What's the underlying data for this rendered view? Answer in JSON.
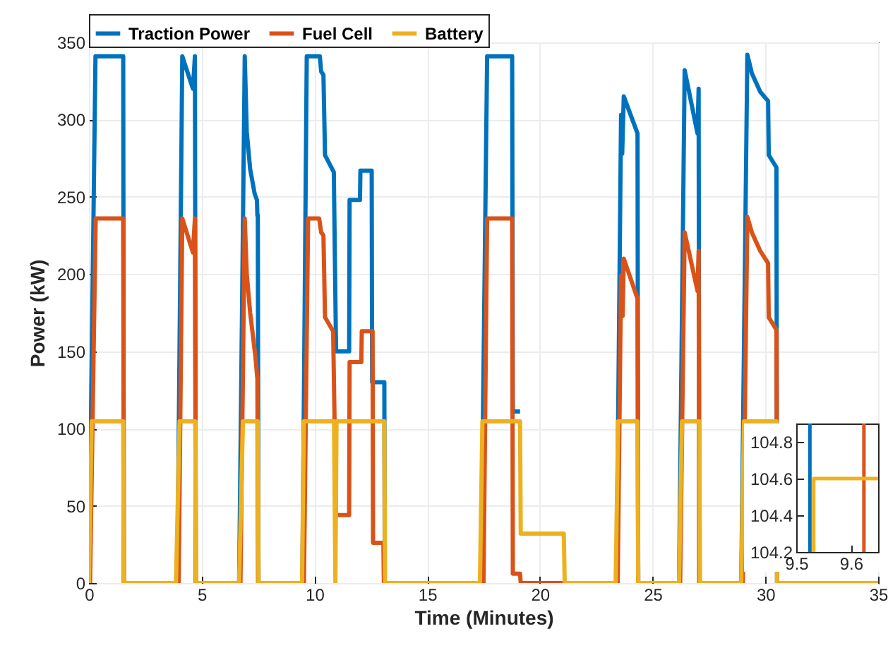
{
  "chart_data": [
    {
      "type": "line",
      "xlabel": "Time (Minutes)",
      "ylabel": "Power (kW)",
      "xlim": [
        0,
        35
      ],
      "ylim": [
        0,
        350
      ],
      "xticks": [
        0,
        5,
        10,
        15,
        20,
        25,
        30,
        35
      ],
      "yticks": [
        0,
        50,
        100,
        150,
        200,
        250,
        300,
        350
      ],
      "grid": true,
      "legend": "top",
      "line_style": "solid",
      "series": [
        {
          "name": "Traction Power",
          "color": "#0072bd",
          "x": [
            0,
            0.29,
            1.52,
            1.55,
            3.92,
            4.14,
            4.61,
            4.7,
            4.74,
            6.66,
            6.91,
            7.0,
            7.15,
            7.35,
            7.45,
            7.47,
            7.49,
            7.52,
            9.465,
            9.66,
            10.24,
            10.3,
            10.4,
            10.47,
            10.86,
            10.96,
            11.54,
            11.56,
            12.02,
            12.04,
            12.54,
            12.56,
            13.1,
            13.12,
            17.39,
            17.66,
            18.77,
            18.8,
            19.12,
            19.15,
            21.06,
            21.1,
            23.4,
            23.6,
            23.65,
            23.72,
            24.33,
            24.36,
            26.17,
            26.42,
            26.99,
            27.04,
            27.07,
            28.93,
            29.2,
            29.4,
            29.77,
            30.12,
            30.15,
            30.49,
            30.52,
            35
          ],
          "values": [
            0,
            341,
            341,
            0,
            0,
            341,
            320,
            341,
            0,
            0,
            341,
            292,
            268,
            252,
            248,
            238,
            238,
            0,
            0,
            341,
            341,
            331,
            329,
            277,
            266,
            150,
            150,
            248,
            248,
            267,
            267,
            130,
            130,
            0,
            0,
            341,
            341,
            111,
            111,
            null,
            null,
            0,
            0,
            303,
            278,
            315,
            291,
            0,
            0,
            332,
            291,
            320,
            0,
            0,
            342,
            330,
            318,
            312,
            277,
            269,
            0,
            0
          ]
        },
        {
          "name": "Fuel Cell",
          "color": "#d95319",
          "x": [
            0,
            0.05,
            0.3,
            1.52,
            1.55,
            3.98,
            4.14,
            4.61,
            4.7,
            4.74,
            6.72,
            6.91,
            7.0,
            7.15,
            7.38,
            7.47,
            7.5,
            9.535,
            9.72,
            10.21,
            10.3,
            10.4,
            10.47,
            10.83,
            10.96,
            11.54,
            11.56,
            12.08,
            12.1,
            12.58,
            12.6,
            13.06,
            13.08,
            17.5,
            17.66,
            18.77,
            18.8,
            19.12,
            19.15,
            23.45,
            23.6,
            23.67,
            23.72,
            24.33,
            24.36,
            26.22,
            26.42,
            26.99,
            27.04,
            27.07,
            29.0,
            29.2,
            29.4,
            29.77,
            30.12,
            30.15,
            30.49,
            30.52,
            35
          ],
          "values": [
            0,
            0,
            236,
            236,
            0,
            0,
            236,
            214,
            236,
            0,
            0,
            236,
            200,
            175,
            147,
            132,
            0,
            0,
            236,
            236,
            227,
            225,
            172,
            163,
            44,
            44,
            143,
            143,
            163,
            163,
            26,
            26,
            0,
            0,
            236,
            236,
            6,
            6,
            0,
            0,
            199,
            173,
            210,
            184,
            0,
            0,
            227,
            189,
            215,
            0,
            0,
            237,
            227,
            215,
            207,
            172,
            164,
            0,
            0
          ]
        },
        {
          "name": "Battery",
          "color": "#edb120",
          "x": [
            0,
            0.12,
            1.52,
            1.55,
            3.86,
            4.02,
            4.72,
            4.75,
            6.66,
            6.83,
            7.49,
            7.52,
            9.45,
            9.532,
            10.87,
            10.93,
            10.98,
            13.1,
            13.13,
            17.34,
            17.45,
            19.12,
            19.15,
            21.06,
            21.1,
            23.36,
            23.47,
            24.33,
            24.36,
            26.17,
            26.3,
            27.07,
            27.1,
            28.93,
            29.05,
            30.49,
            30.52,
            35
          ],
          "values": [
            0,
            104.6,
            104.6,
            0,
            0,
            104.6,
            104.6,
            0,
            0,
            104.6,
            104.6,
            0,
            0,
            104.6,
            104.6,
            0,
            104.6,
            104.6,
            0,
            0,
            104.6,
            104.6,
            32,
            32,
            0,
            0,
            104.6,
            104.6,
            0,
            0,
            104.6,
            104.6,
            0,
            0,
            104.6,
            104.6,
            0,
            0
          ]
        }
      ]
    },
    {
      "type": "line",
      "xlim": [
        9.5,
        9.65
      ],
      "ylim": [
        104.2,
        104.9
      ],
      "xticks": [
        9.5,
        9.6
      ],
      "yticks": [
        104.2,
        104.4,
        104.6,
        104.8
      ],
      "line_style": "solid",
      "series": [
        {
          "color": "#0072bd",
          "x": [
            9.525,
            9.525
          ],
          "values": [
            104.2,
            104.9
          ]
        },
        {
          "color": "#d95319",
          "x": [
            9.624,
            9.624
          ],
          "values": [
            104.2,
            104.9
          ]
        },
        {
          "color": "#edb120",
          "x": [
            9.532,
            9.532,
            9.65
          ],
          "values": [
            104.2,
            104.6,
            104.6
          ]
        }
      ]
    }
  ]
}
